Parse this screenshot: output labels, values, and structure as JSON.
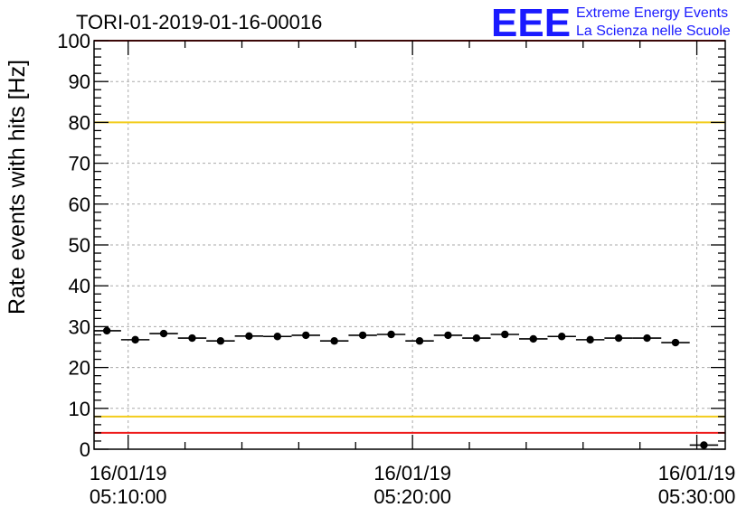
{
  "chart_data": {
    "type": "scatter",
    "title": "TORI-01-2019-01-16-00016",
    "ylabel": "Rate events with hits [Hz]",
    "xlabel": "",
    "x_unit": "minutes",
    "xlim_minutes": [
      -1.2,
      21.0
    ],
    "ylim": [
      0,
      100
    ],
    "yticks": [
      0,
      10,
      20,
      30,
      40,
      50,
      60,
      70,
      80,
      90,
      100
    ],
    "xticks": [
      {
        "minute": 0,
        "date": "16/01/19",
        "time": "05:10:00"
      },
      {
        "minute": 10,
        "date": "16/01/19",
        "time": "05:20:00"
      },
      {
        "minute": 20,
        "date": "16/01/19",
        "time": "05:30:00"
      }
    ],
    "grid": true,
    "x_halfwidth_minutes": 0.5,
    "x": [
      -0.75,
      0.25,
      1.25,
      2.25,
      3.25,
      4.25,
      5.25,
      6.25,
      7.25,
      8.25,
      9.25,
      10.25,
      11.25,
      12.25,
      13.25,
      14.25,
      15.25,
      16.25,
      17.25,
      18.25,
      19.25,
      20.25
    ],
    "values": [
      29.0,
      26.8,
      28.3,
      27.2,
      26.5,
      27.7,
      27.6,
      27.9,
      26.5,
      27.9,
      28.1,
      26.5,
      27.9,
      27.2,
      28.1,
      27.0,
      27.6,
      26.8,
      27.2,
      27.2,
      26.1,
      1.0
    ],
    "reference_lines": [
      {
        "y": 80,
        "color": "#f2cc1a"
      },
      {
        "y": 8,
        "color": "#f2cc1a"
      },
      {
        "y": 100,
        "color": "#ee1c1c"
      },
      {
        "y": 4,
        "color": "#ee1c1c"
      }
    ]
  },
  "logo": {
    "mark": "EEE",
    "line1": "Extreme Energy Events",
    "line2": "La Scienza nelle Scuole",
    "color": "#1a1aff"
  }
}
